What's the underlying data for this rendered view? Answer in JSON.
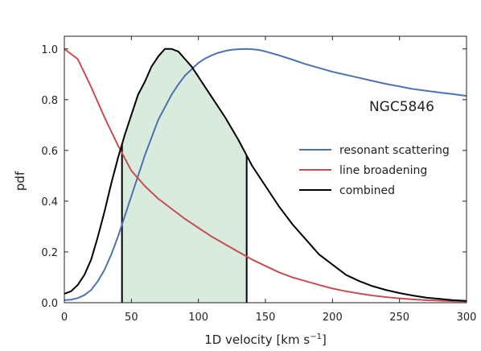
{
  "chart_data": {
    "type": "line",
    "xlabel": "1D velocity [km s",
    "xlabel_sup": "−1",
    "xlabel_close": "]",
    "ylabel": "pdf",
    "annotation": "NGC5846",
    "xlim": [
      0,
      300
    ],
    "ylim": [
      0,
      1.05
    ],
    "xticks": [
      0,
      50,
      100,
      150,
      200,
      250,
      300
    ],
    "yticks": [
      0.0,
      0.2,
      0.4,
      0.6,
      0.8,
      1.0
    ],
    "ytick_labels": [
      "0.0",
      "0.2",
      "0.4",
      "0.6",
      "0.8",
      "1.0"
    ],
    "grid": false,
    "legend_position": "center-right",
    "series": [
      {
        "name": "resonant scattering",
        "color": "#4c72b0",
        "x": [
          0,
          5,
          10,
          15,
          20,
          25,
          30,
          35,
          40,
          45,
          50,
          55,
          60,
          65,
          70,
          75,
          80,
          85,
          90,
          95,
          100,
          105,
          110,
          115,
          120,
          125,
          130,
          135,
          140,
          145,
          150,
          160,
          170,
          180,
          190,
          200,
          210,
          220,
          230,
          240,
          250,
          260,
          270,
          280,
          290,
          300
        ],
        "y": [
          0.01,
          0.012,
          0.018,
          0.03,
          0.05,
          0.085,
          0.13,
          0.19,
          0.26,
          0.34,
          0.42,
          0.5,
          0.58,
          0.65,
          0.72,
          0.77,
          0.82,
          0.86,
          0.895,
          0.92,
          0.945,
          0.962,
          0.975,
          0.985,
          0.992,
          0.997,
          0.999,
          1.0,
          0.999,
          0.996,
          0.99,
          0.975,
          0.958,
          0.94,
          0.925,
          0.91,
          0.898,
          0.886,
          0.874,
          0.862,
          0.852,
          0.842,
          0.835,
          0.828,
          0.822,
          0.815
        ]
      },
      {
        "name": "line broadening",
        "color": "#c44e52",
        "x": [
          0,
          10,
          20,
          30,
          40,
          50,
          60,
          70,
          80,
          90,
          100,
          110,
          120,
          130,
          140,
          150,
          160,
          170,
          180,
          190,
          200,
          210,
          220,
          230,
          240,
          250,
          260,
          270,
          280,
          290,
          300
        ],
        "y": [
          1.0,
          0.96,
          0.85,
          0.73,
          0.62,
          0.52,
          0.46,
          0.41,
          0.37,
          0.33,
          0.295,
          0.26,
          0.23,
          0.2,
          0.17,
          0.145,
          0.12,
          0.1,
          0.085,
          0.07,
          0.056,
          0.045,
          0.036,
          0.028,
          0.022,
          0.017,
          0.013,
          0.01,
          0.008,
          0.006,
          0.005
        ]
      },
      {
        "name": "combined",
        "color": "#000000",
        "x": [
          0,
          5,
          10,
          15,
          20,
          25,
          30,
          35,
          40,
          45,
          50,
          55,
          60,
          65,
          70,
          75,
          80,
          85,
          90,
          95,
          100,
          110,
          120,
          130,
          136,
          140,
          150,
          160,
          170,
          180,
          190,
          200,
          210,
          220,
          230,
          240,
          250,
          260,
          270,
          280,
          290,
          300
        ],
        "y": [
          0.035,
          0.045,
          0.07,
          0.11,
          0.17,
          0.26,
          0.36,
          0.47,
          0.57,
          0.66,
          0.74,
          0.82,
          0.87,
          0.93,
          0.97,
          1.0,
          1.0,
          0.99,
          0.96,
          0.93,
          0.89,
          0.81,
          0.73,
          0.64,
          0.58,
          0.54,
          0.46,
          0.38,
          0.31,
          0.25,
          0.19,
          0.15,
          0.11,
          0.085,
          0.065,
          0.05,
          0.038,
          0.028,
          0.02,
          0.015,
          0.01,
          0.007
        ]
      }
    ],
    "shaded_region": {
      "x_start": 43,
      "x_end": 136,
      "fill_color": "#d9ebdc",
      "edge_color": "#000000"
    }
  }
}
